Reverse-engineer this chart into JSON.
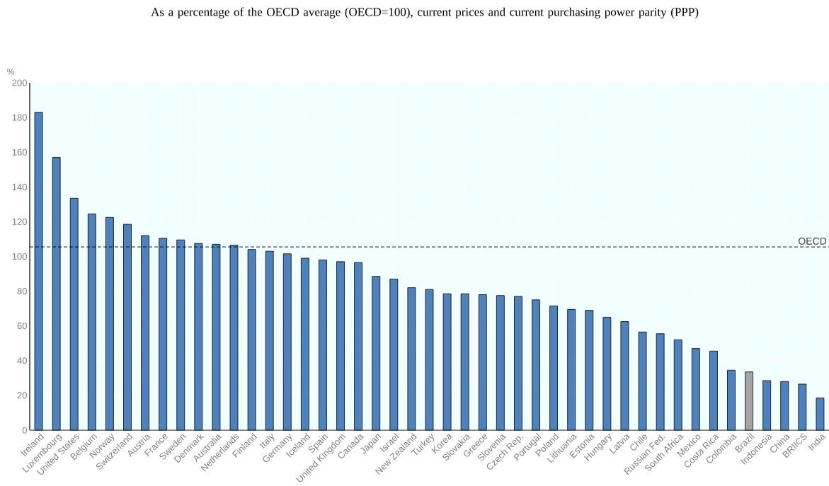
{
  "chart_data": {
    "type": "bar",
    "title": "As a percentage of the OECD average (OECD=100), current prices and current purchasing power parity (PPP)",
    "ylabel": "%",
    "categories": [
      "Ireland",
      "Luxembourg",
      "United States",
      "Belgium",
      "Norway",
      "Switzerland",
      "Austria",
      "France",
      "Sweden",
      "Denmark",
      "Australia",
      "Netherlands",
      "Finland",
      "Italy",
      "Germany",
      "Iceland",
      "Spain",
      "United Kingdom",
      "Canada",
      "Japan",
      "Israel",
      "New Zealand",
      "Turkey",
      "Korea",
      "Slovakia",
      "Greece",
      "Slovenia",
      "Czech Rep.",
      "Portugal",
      "Poland",
      "Lithuania",
      "Estonia",
      "Hungary",
      "Latvia",
      "Chile",
      "Russian Fed.",
      "South Africa",
      "Mexico",
      "Costa Rica",
      "Colombia",
      "Brazil",
      "Indonesia",
      "China",
      "BRIICS",
      "India"
    ],
    "values": [
      183,
      157,
      133.5,
      124.5,
      122.5,
      118.5,
      112,
      110.5,
      109.5,
      107.5,
      107,
      106.5,
      104,
      103,
      101.5,
      99,
      98,
      97,
      96.5,
      88.5,
      87,
      82,
      81,
      78.5,
      78.5,
      78,
      77.5,
      77,
      75,
      71.5,
      69.5,
      69,
      65,
      62.5,
      56.5,
      55.5,
      52,
      47,
      45.5,
      34.5,
      33.5,
      28.5,
      28,
      26.5,
      18.5
    ],
    "colors": [
      "#4f81bd",
      "#4f81bd",
      "#4f81bd",
      "#4f81bd",
      "#4f81bd",
      "#4f81bd",
      "#4f81bd",
      "#4f81bd",
      "#4f81bd",
      "#4f81bd",
      "#4f81bd",
      "#4f81bd",
      "#4f81bd",
      "#4f81bd",
      "#4f81bd",
      "#4f81bd",
      "#4f81bd",
      "#4f81bd",
      "#4f81bd",
      "#4f81bd",
      "#4f81bd",
      "#4f81bd",
      "#4f81bd",
      "#4f81bd",
      "#4f81bd",
      "#4f81bd",
      "#4f81bd",
      "#4f81bd",
      "#4f81bd",
      "#4f81bd",
      "#4f81bd",
      "#4f81bd",
      "#4f81bd",
      "#4f81bd",
      "#4f81bd",
      "#4f81bd",
      "#4f81bd",
      "#4f81bd",
      "#4f81bd",
      "#4f81bd",
      "#a6a6a6",
      "#4f81bd",
      "#4f81bd",
      "#4f81bd",
      "#4f81bd"
    ],
    "ylim": [
      0,
      200
    ],
    "yticks": [
      0,
      20,
      40,
      60,
      80,
      100,
      120,
      140,
      160,
      180,
      200
    ],
    "ref_lines": [
      {
        "axis": "y",
        "value": 105.5,
        "label": "OECD",
        "color": "#000000",
        "line_style": "dashed"
      }
    ],
    "grid": true
  }
}
